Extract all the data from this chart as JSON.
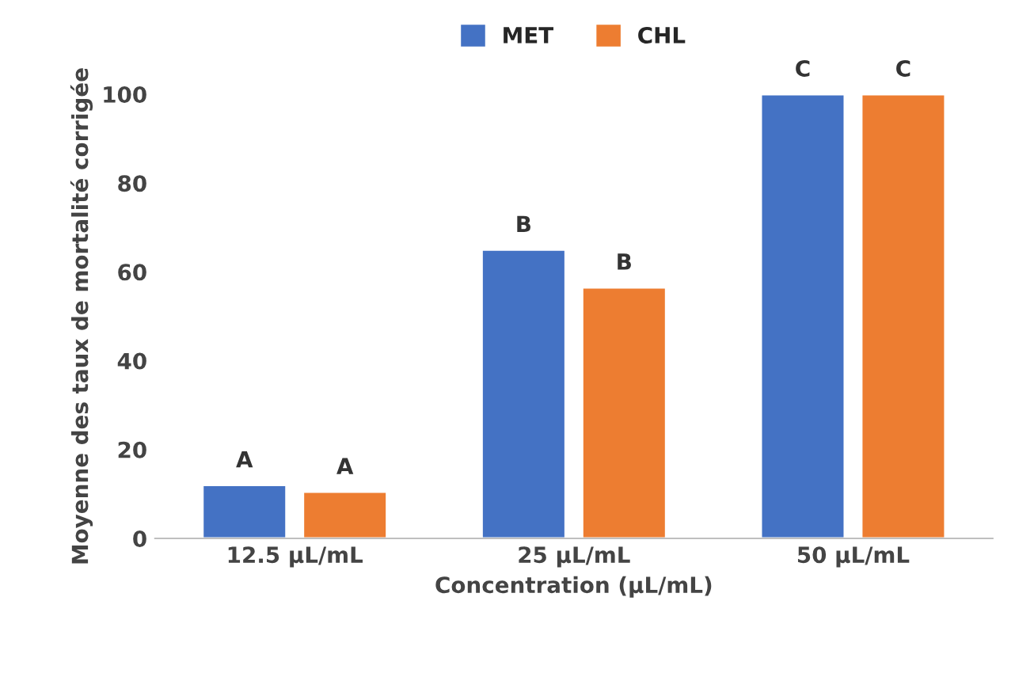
{
  "chart_data": {
    "type": "bar",
    "categories": [
      "12.5 µL/mL",
      "25 µL/mL",
      "50 µL/mL"
    ],
    "xlabel": "Concentration (µL/mL)",
    "ylabel": "Moyenne des taux de mortalité corrigée",
    "series": [
      {
        "name": "MET",
        "color": "#4472c4",
        "values": [
          12,
          65,
          100
        ],
        "value_labels": [
          "A",
          "B",
          "C"
        ]
      },
      {
        "name": "CHL",
        "color": "#ed7d31",
        "values": [
          10.5,
          56.5,
          100
        ],
        "value_labels": [
          "A",
          "B",
          "C"
        ]
      }
    ],
    "ylim": [
      0,
      100
    ],
    "yticks": [
      0,
      20,
      40,
      60,
      80,
      100
    ],
    "legend": "top",
    "grid": false
  }
}
